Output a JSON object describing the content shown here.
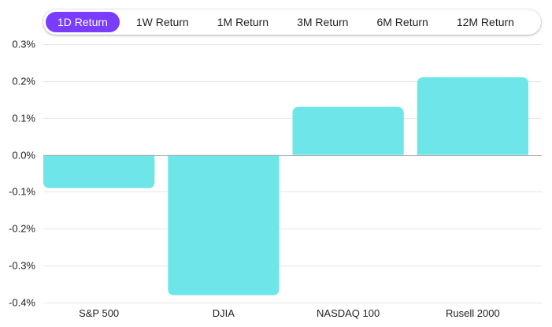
{
  "tabs": [
    {
      "label": "1D Return",
      "active": true
    },
    {
      "label": "1W Return",
      "active": false
    },
    {
      "label": "1M Return",
      "active": false
    },
    {
      "label": "3M Return",
      "active": false
    },
    {
      "label": "6M Return",
      "active": false
    },
    {
      "label": "12M Return",
      "active": false
    }
  ],
  "colors": {
    "bar": "#6ee6e9",
    "active_tab": "#7a3cff",
    "grid": "#e6e6e6",
    "zero_line": "#aaaaaa"
  },
  "chart_data": {
    "type": "bar",
    "categories": [
      "S&P 500",
      "DJIA",
      "NASDAQ 100",
      "Rusell 2000"
    ],
    "values": [
      -0.09,
      -0.38,
      0.13,
      0.21
    ],
    "ylim": [
      -0.4,
      0.3
    ],
    "yticks": [
      "0.3%",
      "0.2%",
      "0.1%",
      "0.0%",
      "-0.1%",
      "-0.2%",
      "-0.3%",
      "-0.4%"
    ],
    "ytick_values": [
      0.3,
      0.2,
      0.1,
      0.0,
      -0.1,
      -0.2,
      -0.3,
      -0.4
    ],
    "grid": true,
    "title": "",
    "xlabel": "",
    "ylabel": ""
  }
}
